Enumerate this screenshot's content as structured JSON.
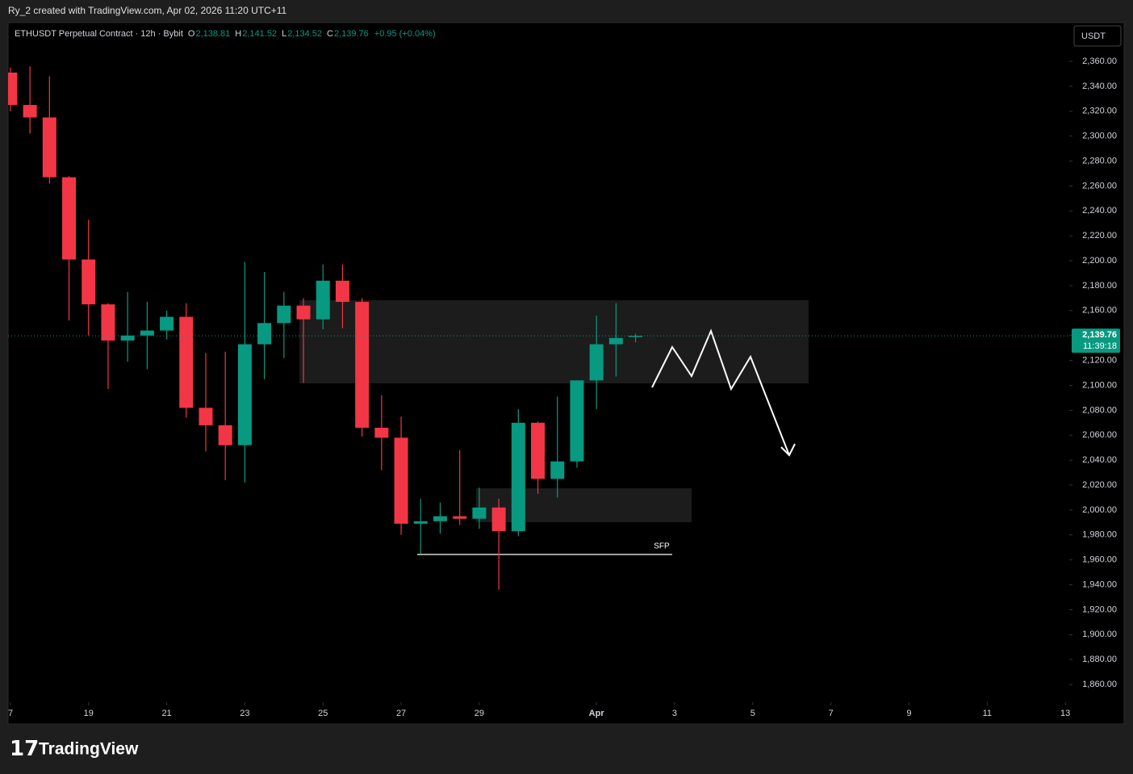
{
  "chart_data": {
    "type": "candlestick",
    "page_header": "Ry_2 created with TradingView.com, Apr 02, 2026 11:20 UTC+11",
    "title": "ETHUSDT Perpetual Contract · 12h · Bybit",
    "legend": [
      {
        "label": "O",
        "text": "2,138.81"
      },
      {
        "label": "H",
        "text": "2,141.52"
      },
      {
        "label": "L",
        "text": "2,134.52"
      },
      {
        "label": "C",
        "text": "2,139.76"
      },
      {
        "label": "",
        "text": "+0.95 (+0.04%)"
      }
    ],
    "currency": "USDT",
    "brand": "TradingView",
    "annotation": "SFP",
    "last_price_label": "2,139.76",
    "countdown": "11:39:18",
    "up_color": "#089981",
    "down_color": "#f23645",
    "open": [
      2351,
      2325,
      2315,
      2267,
      2201,
      2165,
      2136,
      2140,
      2144,
      2155,
      2082,
      2068,
      2052,
      2133,
      2150,
      2164,
      2153,
      2184,
      2167,
      2066,
      2058,
      1989,
      1991,
      1995,
      1993,
      2002,
      1983,
      2070,
      2025,
      2039,
      2104,
      2133,
      2138.81
    ],
    "high": [
      2355,
      2356,
      2348,
      2268,
      2233,
      2166,
      2175,
      2167,
      2160,
      2166,
      2126,
      2127,
      2199,
      2191,
      2175,
      2170,
      2197,
      2197,
      2170,
      2092,
      2075,
      2009,
      2006,
      2048,
      2018,
      2009,
      2081,
      2071,
      2091,
      2104,
      2156,
      2166,
      2141.52
    ],
    "low": [
      2320,
      2302,
      2262,
      2152,
      2140,
      2097,
      2119,
      2113,
      2137,
      2074,
      2047,
      2024,
      2022,
      2105,
      2122,
      2102,
      2145,
      2146,
      2059,
      2032,
      1980,
      1965,
      1981,
      1988,
      1985,
      1936,
      1979,
      2013,
      2010,
      2034,
      2081,
      2107,
      2134.52
    ],
    "close": [
      2325,
      2315,
      2267,
      2201,
      2165,
      2136,
      2140,
      2144,
      2155,
      2082,
      2068,
      2052,
      2133,
      2150,
      2164,
      2153,
      2184,
      2167,
      2066,
      2058,
      1989,
      1991,
      1995,
      1993,
      2002,
      1983,
      2070,
      2025,
      2039,
      2104,
      2133,
      2138,
      2139.76
    ],
    "xlim": [
      -0.12,
      54.2
    ],
    "xticks": [
      {
        "value": 0,
        "label": "7"
      },
      {
        "value": 4,
        "label": "19"
      },
      {
        "value": 8,
        "label": "21"
      },
      {
        "value": 12,
        "label": "23"
      },
      {
        "value": 16,
        "label": "25"
      },
      {
        "value": 20,
        "label": "27"
      },
      {
        "value": 24,
        "label": "29"
      },
      {
        "value": 30,
        "label": "Apr"
      },
      {
        "value": 34,
        "label": "3"
      },
      {
        "value": 38,
        "label": "5"
      },
      {
        "value": 42,
        "label": "7"
      },
      {
        "value": 46,
        "label": "9"
      },
      {
        "value": 50,
        "label": "11"
      },
      {
        "value": 54,
        "label": "13"
      }
    ],
    "ylim": [
      1845.8,
      2391.1
    ],
    "yticks": [
      {
        "value": 2360,
        "label": "2,360.00"
      },
      {
        "value": 2340,
        "label": "2,340.00"
      },
      {
        "value": 2320,
        "label": "2,320.00"
      },
      {
        "value": 2300,
        "label": "2,300.00"
      },
      {
        "value": 2280,
        "label": "2,280.00"
      },
      {
        "value": 2260,
        "label": "2,260.00"
      },
      {
        "value": 2240,
        "label": "2,240.00"
      },
      {
        "value": 2220,
        "label": "2,220.00"
      },
      {
        "value": 2200,
        "label": "2,200.00"
      },
      {
        "value": 2180,
        "label": "2,180.00"
      },
      {
        "value": 2160,
        "label": "2,160.00"
      },
      {
        "value": 2140,
        "label": "2,140.00"
      },
      {
        "value": 2120,
        "label": "2,120.00"
      },
      {
        "value": 2100,
        "label": "2,100.00"
      },
      {
        "value": 2080,
        "label": "2,080.00"
      },
      {
        "value": 2060,
        "label": "2,060.00"
      },
      {
        "value": 2040,
        "label": "2,040.00"
      },
      {
        "value": 2020,
        "label": "2,020.00"
      },
      {
        "value": 2000,
        "label": "2,000.00"
      },
      {
        "value": 1980,
        "label": "1,980.00"
      },
      {
        "value": 1960,
        "label": "1,960.00"
      },
      {
        "value": 1940,
        "label": "1,940.00"
      },
      {
        "value": 1920,
        "label": "1,920.00"
      },
      {
        "value": 1900,
        "label": "1,900.00"
      },
      {
        "value": 1880,
        "label": "1,880.00"
      },
      {
        "value": 1860,
        "label": "1,860.00"
      }
    ],
    "grid": false
  }
}
